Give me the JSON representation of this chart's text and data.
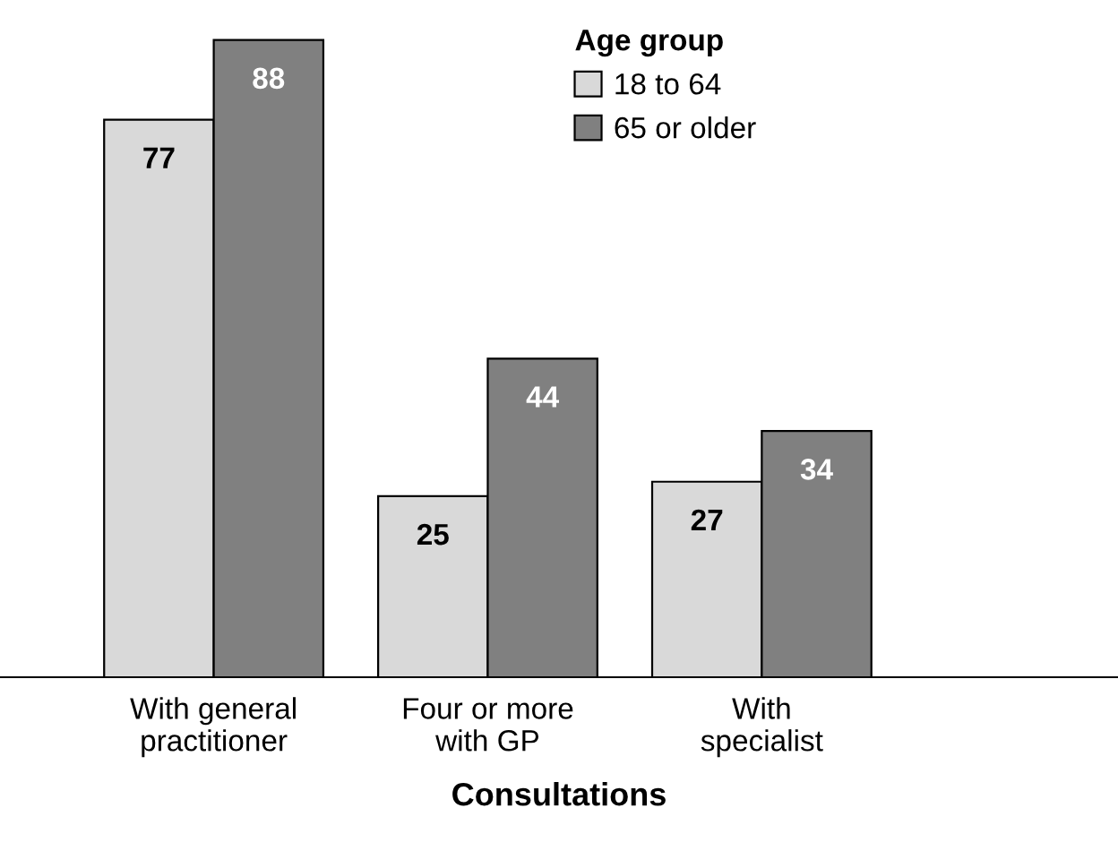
{
  "chart_data": {
    "type": "bar",
    "xlabel": "Consultations",
    "legend_title": "Age group",
    "legend": "top right",
    "categories": [
      "With general\npractitioner",
      "Four or more\nwith GP",
      "With\nspecialist"
    ],
    "series": [
      {
        "name": "18 to 64",
        "color": "#d9d9d9",
        "values": [
          77,
          25,
          27
        ]
      },
      {
        "name": "65 or older",
        "color": "#808080",
        "values": [
          88,
          44,
          34
        ]
      }
    ],
    "data_labels": true,
    "grid": false
  }
}
